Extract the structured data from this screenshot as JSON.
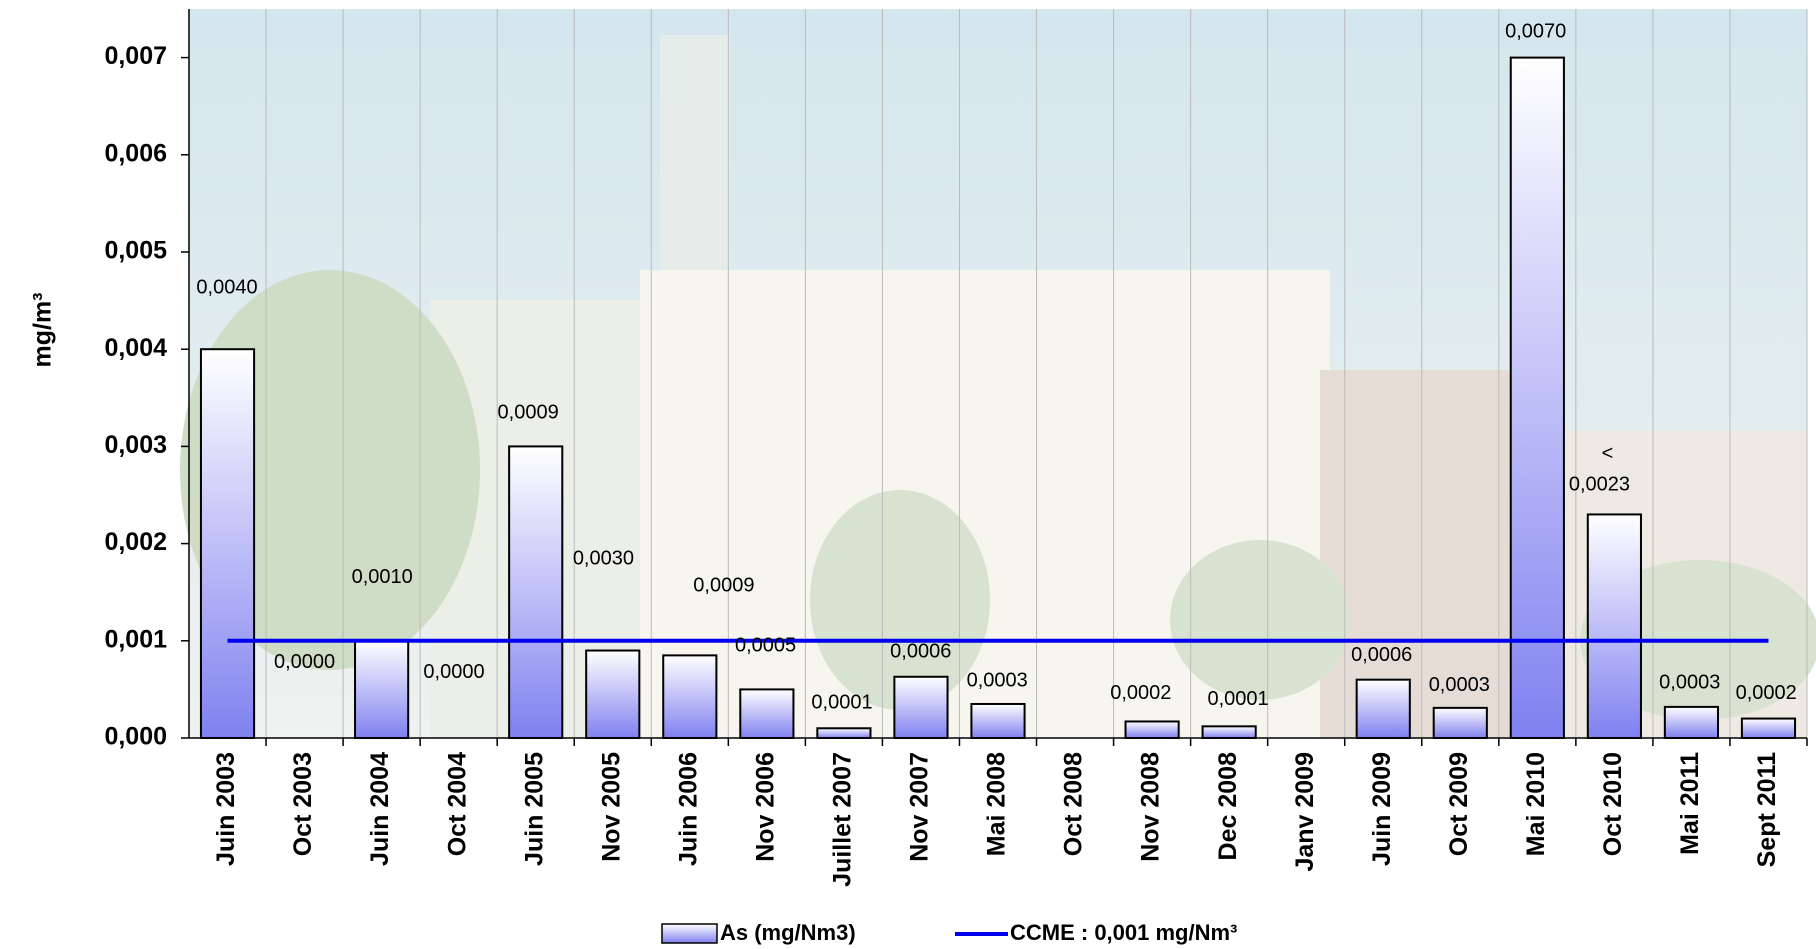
{
  "chart_data": {
    "type": "bar",
    "y_label": "mg/m³",
    "categories": [
      "Juin 2003",
      "Oct 2003",
      "Juin 2004",
      "Oct 2004",
      "Juin 2005",
      "Nov 2005",
      "Juin 2006",
      "Nov 2006",
      "Juillet 2007",
      "Nov 2007",
      "Mai 2008",
      "Oct 2008",
      "Nov 2008",
      "Dec 2008",
      "Janv 2009",
      "Juin 2009",
      "Oct 2009",
      "Mai 2010",
      "Oct 2010",
      "Mai 2011",
      "Sept 2011"
    ],
    "series": [
      {
        "name": "As (mg/Nm3)",
        "type": "bar",
        "color": "#8080f0",
        "values": [
          0.004,
          0,
          0.001,
          0,
          0.003,
          0.0009,
          0.00085,
          0.0005,
          0.0001,
          0.00063,
          0.00035,
          null,
          0.00017,
          0.00012,
          null,
          0.0006,
          0.00031,
          0.007,
          0.0023,
          0.00032,
          0.0002
        ]
      },
      {
        "name": "CCME : 0,001 mg/Nm³",
        "type": "line",
        "color": "#0000ee",
        "values": [
          0.001,
          0.001,
          0.001,
          0.001,
          0.001,
          0.001,
          0.001,
          0.001,
          0.001,
          0.001,
          0.001,
          0.001,
          0.001,
          0.001,
          0.001,
          0.001,
          0.001,
          0.001,
          0.001,
          0.001,
          0.001
        ]
      }
    ],
    "annotations": [
      "0,0040",
      "0,0000",
      "0,0010",
      "0,0000",
      "0,0009",
      "0,0030",
      "0,0009",
      "0,0005",
      "0,0001",
      "0,0006",
      "0,0003",
      "0,0002",
      "0,0001",
      "0,0006",
      "0,0003",
      "0,0070",
      "<",
      "0,0023",
      "0,0003",
      "0,0002"
    ],
    "ylim": [
      0,
      0.0075
    ],
    "yticks": [
      {
        "value": 0,
        "label": "0,000"
      },
      {
        "value": 0.001,
        "label": "0,001"
      },
      {
        "value": 0.002,
        "label": "0,002"
      },
      {
        "value": 0.003,
        "label": "0,003"
      },
      {
        "value": 0.004,
        "label": "0,004"
      },
      {
        "value": 0.005,
        "label": "0,005"
      },
      {
        "value": 0.006,
        "label": "0,006"
      },
      {
        "value": 0.007,
        "label": "0,007"
      }
    ]
  }
}
